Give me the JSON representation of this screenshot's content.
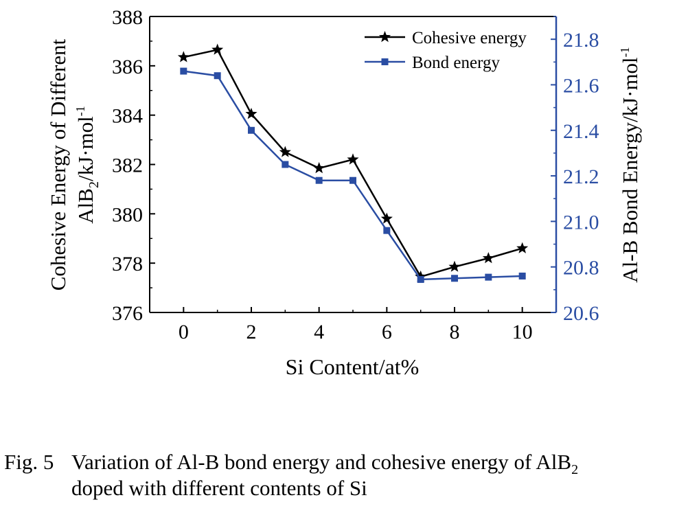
{
  "chart_data": {
    "type": "line",
    "xlabel": "Si Content/at%",
    "ylabel_left": {
      "line1": "Cohesive Energy of Different",
      "line2_main": "AlB",
      "line2_sub": "2",
      "line2_unit": "/kJ·mol",
      "line2_sup": "-1"
    },
    "ylabel_right": {
      "main": "Al-B Bond Energy/kJ·mol",
      "sup": "-1"
    },
    "x": [
      0,
      1,
      2,
      3,
      4,
      5,
      6,
      7,
      8,
      9,
      10
    ],
    "xticks": [
      0,
      2,
      4,
      6,
      8,
      10
    ],
    "xlim": [
      -1,
      11
    ],
    "ylim_left": [
      376,
      388
    ],
    "yticks_left": [
      376,
      378,
      380,
      382,
      384,
      386,
      388
    ],
    "ylim_right": [
      20.6,
      21.9
    ],
    "yticks_right": [
      "20.6",
      "20.8",
      "21.0",
      "21.2",
      "21.4",
      "21.6",
      "21.8"
    ],
    "legend_position": "top-right",
    "grid": false,
    "series": [
      {
        "name": "Cohesive energy",
        "axis": "left",
        "marker": "star",
        "color": "#000000",
        "values": [
          386.35,
          386.65,
          384.05,
          382.5,
          381.85,
          382.2,
          379.8,
          377.45,
          377.85,
          378.2,
          378.6
        ]
      },
      {
        "name": "Bond energy",
        "axis": "right",
        "marker": "square",
        "color": "#2a4da3",
        "values": [
          21.66,
          21.64,
          21.4,
          21.25,
          21.18,
          21.18,
          20.96,
          20.745,
          20.75,
          20.755,
          20.76
        ]
      }
    ]
  },
  "caption": {
    "label": "Fig. 5",
    "text_line1": "Variation of Al-B bond energy and cohesive energy of AlB",
    "text_line1_sub": "2",
    "text_line2": "doped with different contents of Si"
  }
}
